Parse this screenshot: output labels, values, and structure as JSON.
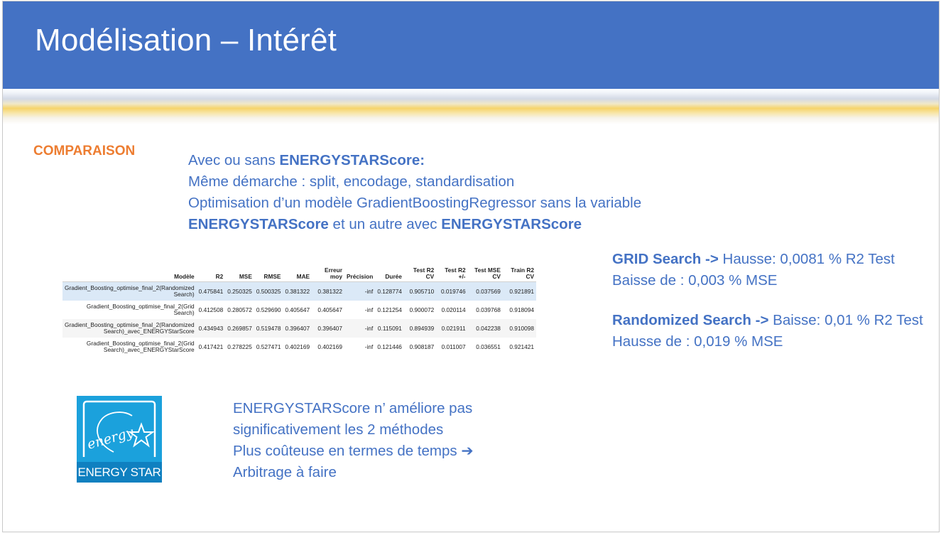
{
  "header": {
    "title": "Modélisation – Intérêt"
  },
  "section_label": "COMPARAISON",
  "intro": {
    "line1_prefix": "Avec ou sans ",
    "line1_bold": "ENERGYSTARScore:",
    "line2": "Même démarche : split, encodage, standardisation",
    "line3": "Optimisation d’un modèle GradientBoostingRegressor sans la variable",
    "line4_bold1": "ENERGYSTARScore",
    "line4_mid": " et un autre avec ",
    "line4_bold2": "ENERGYSTARScore"
  },
  "table": {
    "columns": [
      "Modèle",
      "R2",
      "MSE",
      "RMSE",
      "MAE",
      "Erreur moy",
      "Précision",
      "Durée",
      "Test R2 CV",
      "Test R2 +/-",
      "Test MSE CV",
      "Train R2 CV"
    ],
    "rows": [
      [
        "Gradient_Boosting_optimise_final_2(Randomized Search)",
        "0.475841",
        "0.250325",
        "0.500325",
        "0.381322",
        "0.381322",
        "-inf",
        "0.128774",
        "0.905710",
        "0.019746",
        "0.037569",
        "0.921891"
      ],
      [
        "Gradient_Boosting_optimise_final_2(Grid Search)",
        "0.412508",
        "0.280572",
        "0.529690",
        "0.405647",
        "0.405647",
        "-inf",
        "0.121254",
        "0.900072",
        "0.020114",
        "0.039768",
        "0.918094"
      ],
      [
        "Gradient_Boosting_optimise_final_2(Randomized Search)_avec_ENERGYStarScore",
        "0.434943",
        "0.269857",
        "0.519478",
        "0.396407",
        "0.396407",
        "-inf",
        "0.115091",
        "0.894939",
        "0.021911",
        "0.042238",
        "0.910098"
      ],
      [
        "Gradient_Boosting_optimise_final_2(Grid Search)_avec_ENERGYStarScore",
        "0.417421",
        "0.278225",
        "0.527471",
        "0.402169",
        "0.402169",
        "-inf",
        "0.121446",
        "0.908187",
        "0.011007",
        "0.036551",
        "0.921421"
      ]
    ]
  },
  "results": {
    "grid": {
      "label": "GRID Search",
      "arrow": " -> ",
      "text": " Hausse:  0,0081 % R2 Test",
      "line2": "Baisse de : 0,003 % MSE"
    },
    "randomized": {
      "label": "Randomized Search",
      "arrow": " -> ",
      "text": "Baisse:  0,01 % R2 Test",
      "line2": "Hausse de : 0,019 % MSE"
    }
  },
  "logo": {
    "text": "ENERGY STAR",
    "script": "energy"
  },
  "conclusion": {
    "line1": "ENERGYSTARScore n’ améliore pas",
    "line2": "significativement les 2 méthodes",
    "line3": "Plus coûteuse en termes de temps ➔",
    "line4": "Arbitrage à faire"
  },
  "colors": {
    "header": "#4472c4",
    "accent_orange": "#ed7d31",
    "text_blue": "#4472c4",
    "logo_blue": "#1ba1dc"
  }
}
